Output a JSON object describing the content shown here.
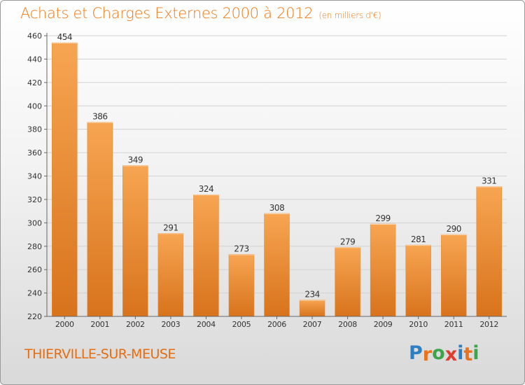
{
  "header": {
    "title": "Achats et Charges Externes 2000 à 2012",
    "subtitle": "(en milliers d'€)"
  },
  "footer": {
    "city": "THIERVILLE-SUR-MEUSE",
    "brand": "Proxiti"
  },
  "colors": {
    "bar_light": "#f7a552",
    "bar_dark": "#d8731c",
    "title": "#f07a14",
    "logo": [
      "#2d7fc4",
      "#e8731c",
      "#3aa54a",
      "#e23b2d",
      "#2d7fc4",
      "#e8731c",
      "#3aa54a"
    ]
  },
  "chart_data": {
    "type": "bar",
    "title": "Achats et Charges Externes 2000 à 2012",
    "categories": [
      "2000",
      "2001",
      "2002",
      "2003",
      "2004",
      "2005",
      "2006",
      "2007",
      "2008",
      "2009",
      "2010",
      "2011",
      "2012"
    ],
    "values": [
      454,
      386,
      349,
      291,
      324,
      273,
      308,
      234,
      279,
      299,
      281,
      290,
      331
    ],
    "ylim": [
      220,
      460
    ],
    "yticks": [
      220,
      240,
      260,
      280,
      300,
      320,
      340,
      360,
      380,
      400,
      420,
      440,
      460
    ],
    "grid": true,
    "data_labels": true
  }
}
